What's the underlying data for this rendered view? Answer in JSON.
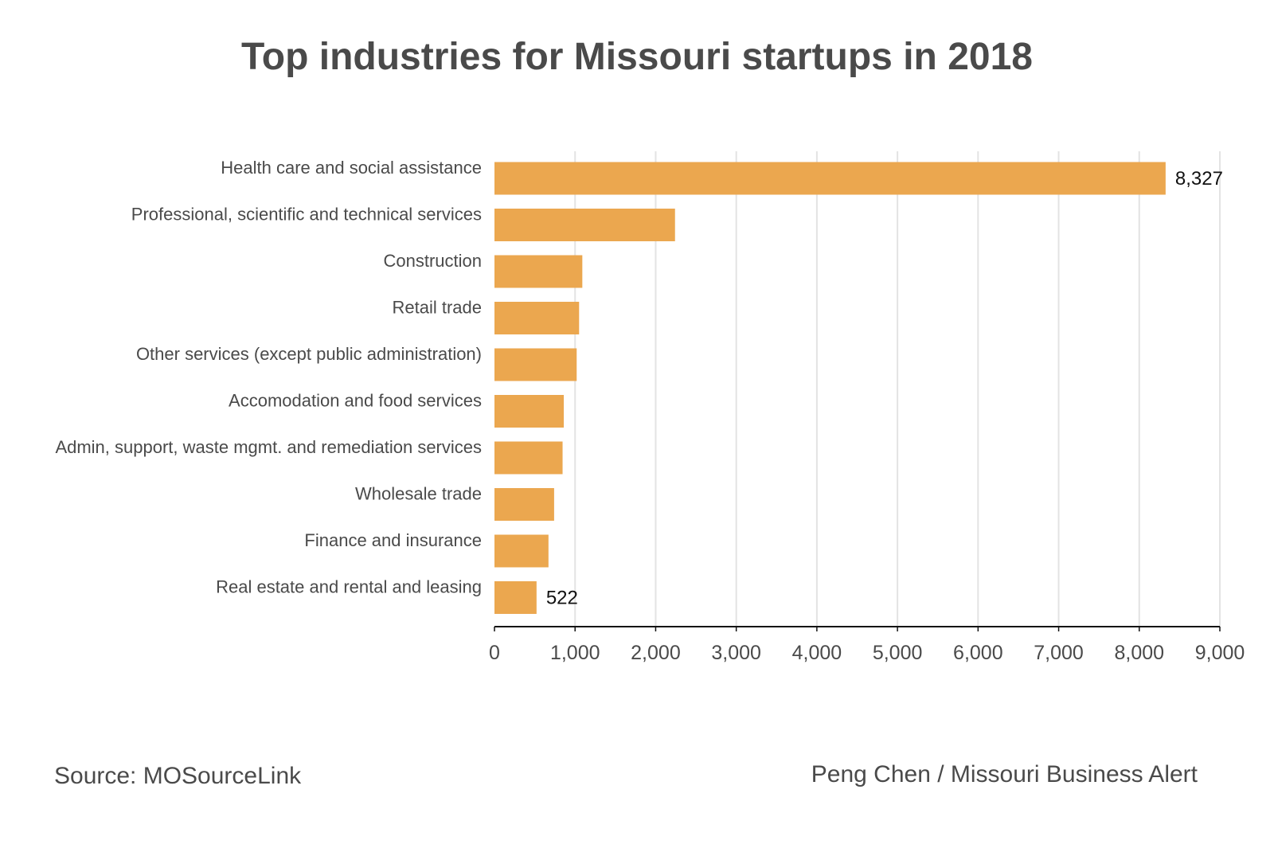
{
  "title": "Top industries for Missouri startups in 2018",
  "source": "Source: MOSourceLink",
  "credit": "Peng Chen / Missouri Business Alert",
  "colors": {
    "bar": "#eba74f",
    "grid": "#e3e3e3",
    "axis": "#111111"
  },
  "chart_data": {
    "type": "bar",
    "orientation": "horizontal",
    "categories": [
      "Health care and social assistance",
      "Professional, scientific and technical services",
      "Construction",
      "Retail trade",
      "Other services (except public administration)",
      "Accomodation and food services",
      "Admin, support, waste mgmt. and remediation services",
      "Wholesale trade",
      "Finance and insurance",
      "Real estate and rental and leasing"
    ],
    "values": [
      8327,
      2240,
      1090,
      1050,
      1020,
      860,
      845,
      740,
      670,
      522
    ],
    "data_labels": [
      {
        "index": 0,
        "text": "8,327"
      },
      {
        "index": 9,
        "text": "522"
      }
    ],
    "xlim": [
      0,
      9000
    ],
    "xticks": [
      0,
      1000,
      2000,
      3000,
      4000,
      5000,
      6000,
      7000,
      8000,
      9000
    ],
    "xtick_labels": [
      "0",
      "1,000",
      "2,000",
      "3,000",
      "4,000",
      "5,000",
      "6,000",
      "7,000",
      "8,000",
      "9,000"
    ],
    "grid": true,
    "legend": "none"
  }
}
